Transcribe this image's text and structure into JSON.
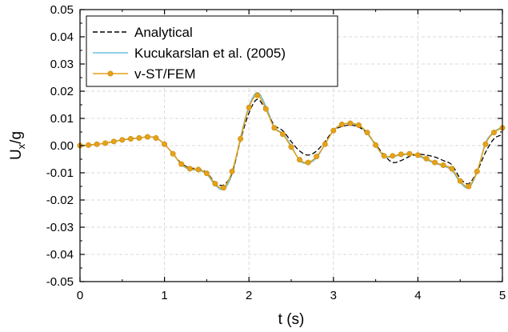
{
  "chart_data": {
    "type": "line",
    "xlabel": "t (s)",
    "ylabel_main": "U",
    "ylabel_sub": "x",
    "ylabel_tail": "/g",
    "xlim": [
      0,
      5
    ],
    "ylim": [
      -0.05,
      0.05
    ],
    "grid": true,
    "legend_position": "top-left",
    "x_ticks": [
      "0",
      "1",
      "2",
      "3",
      "4",
      "5"
    ],
    "y_ticks": [
      "0.05",
      "0.04",
      "0.03",
      "0.02",
      "0.01",
      "0.00",
      "-0.01",
      "-0.02",
      "-0.03",
      "-0.04",
      "-0.05"
    ],
    "series": [
      {
        "name": "Analytical",
        "color": "#000000",
        "style": "dashed",
        "x": [
          0,
          0.1,
          0.2,
          0.3,
          0.4,
          0.5,
          0.6,
          0.7,
          0.8,
          0.9,
          1.0,
          1.1,
          1.2,
          1.3,
          1.4,
          1.5,
          1.6,
          1.7,
          1.8,
          1.9,
          2.0,
          2.1,
          2.2,
          2.3,
          2.4,
          2.5,
          2.6,
          2.7,
          2.8,
          2.9,
          3.0,
          3.1,
          3.2,
          3.3,
          3.4,
          3.5,
          3.6,
          3.7,
          3.8,
          3.9,
          4.0,
          4.1,
          4.2,
          4.3,
          4.4,
          4.5,
          4.6,
          4.7,
          4.8,
          4.9,
          5.0
        ],
        "y": [
          0.0,
          0.0002,
          0.0005,
          0.0009,
          0.0015,
          0.0021,
          0.0025,
          0.0028,
          0.0032,
          0.0028,
          0.0005,
          -0.003,
          -0.0065,
          -0.0082,
          -0.0085,
          -0.01,
          -0.0135,
          -0.0145,
          -0.01,
          0.002,
          0.012,
          0.017,
          0.013,
          0.0075,
          0.0055,
          0.0015,
          -0.002,
          -0.0035,
          -0.002,
          0.0015,
          0.0055,
          0.007,
          0.0075,
          0.0068,
          0.0045,
          0.0005,
          -0.0035,
          -0.0062,
          -0.0055,
          -0.004,
          -0.0032,
          -0.0035,
          -0.0042,
          -0.0055,
          -0.007,
          -0.012,
          -0.014,
          -0.0095,
          -0.0025,
          0.0025,
          0.004
        ]
      },
      {
        "name": "Kucukarslan et al. (2005)",
        "color": "#6cc0d8",
        "style": "solid",
        "x": [
          0,
          0.1,
          0.2,
          0.3,
          0.4,
          0.5,
          0.6,
          0.7,
          0.8,
          0.9,
          1.0,
          1.1,
          1.2,
          1.3,
          1.4,
          1.5,
          1.6,
          1.7,
          1.8,
          1.9,
          2.0,
          2.1,
          2.2,
          2.3,
          2.4,
          2.5,
          2.6,
          2.7,
          2.8,
          2.9,
          3.0,
          3.1,
          3.2,
          3.3,
          3.4,
          3.5,
          3.6,
          3.7,
          3.8,
          3.9,
          4.0,
          4.1,
          4.2,
          4.3,
          4.4,
          4.5,
          4.6,
          4.7,
          4.8,
          4.9,
          5.0
        ],
        "y": [
          0.0,
          0.0002,
          0.0005,
          0.0009,
          0.0015,
          0.0021,
          0.0025,
          0.0028,
          0.0032,
          0.0028,
          0.0005,
          -0.003,
          -0.007,
          -0.0088,
          -0.009,
          -0.0105,
          -0.0145,
          -0.016,
          -0.0105,
          0.003,
          0.0145,
          0.0195,
          0.0145,
          0.0068,
          0.0045,
          0.0,
          -0.0055,
          -0.0065,
          -0.0045,
          0.0005,
          0.0055,
          0.0078,
          0.008,
          0.0072,
          0.0045,
          0.0,
          -0.004,
          -0.004,
          -0.0035,
          -0.0032,
          -0.0038,
          -0.0052,
          -0.0065,
          -0.0075,
          -0.009,
          -0.0135,
          -0.0155,
          -0.0098,
          0.001,
          0.005,
          0.0068
        ]
      },
      {
        "name": "v-ST/FEM",
        "color": "#e5a21a",
        "style": "solid-markers",
        "x": [
          0,
          0.1,
          0.2,
          0.3,
          0.4,
          0.5,
          0.6,
          0.7,
          0.8,
          0.9,
          1.0,
          1.1,
          1.2,
          1.3,
          1.4,
          1.5,
          1.6,
          1.7,
          1.8,
          1.9,
          2.0,
          2.1,
          2.2,
          2.3,
          2.4,
          2.5,
          2.6,
          2.7,
          2.8,
          2.9,
          3.0,
          3.1,
          3.2,
          3.3,
          3.4,
          3.5,
          3.6,
          3.7,
          3.8,
          3.9,
          4.0,
          4.1,
          4.2,
          4.3,
          4.4,
          4.5,
          4.6,
          4.7,
          4.8,
          4.9,
          5.0
        ],
        "y": [
          0.0,
          0.0002,
          0.0005,
          0.0009,
          0.0015,
          0.0021,
          0.0025,
          0.0028,
          0.0032,
          0.0028,
          0.0005,
          -0.003,
          -0.0068,
          -0.0085,
          -0.0088,
          -0.0102,
          -0.014,
          -0.0155,
          -0.0095,
          0.0025,
          0.014,
          0.0185,
          0.0135,
          0.0065,
          0.0042,
          -0.0005,
          -0.0052,
          -0.0062,
          -0.004,
          0.0005,
          0.0055,
          0.0078,
          0.0082,
          0.0075,
          0.0048,
          0.0002,
          -0.0038,
          -0.0038,
          -0.0032,
          -0.003,
          -0.0035,
          -0.0048,
          -0.0062,
          -0.0072,
          -0.0085,
          -0.013,
          -0.015,
          -0.0095,
          0.0005,
          0.0048,
          0.0065
        ]
      }
    ]
  }
}
